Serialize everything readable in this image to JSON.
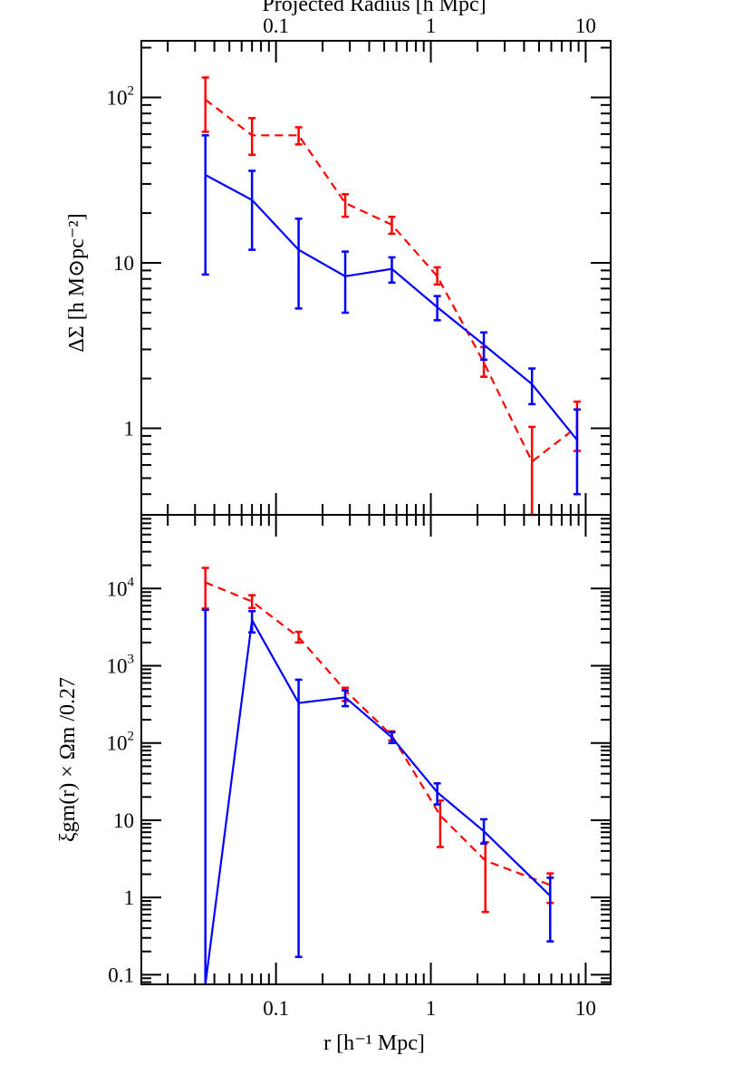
{
  "chart_data": [
    {
      "type": "line",
      "panel": "top",
      "top_xlabel": "Projected Radius [h Mpc]",
      "ylabel": "ΔΣ [h M⊙pc⁻²]",
      "xscale": "log",
      "yscale": "log",
      "xlim": [
        0.0135,
        14.5
      ],
      "ylim": [
        0.3,
        220
      ],
      "x_tick_labels": [
        "0.1",
        "1",
        "10"
      ],
      "y_tick_labels": [
        {
          "base": "10",
          "exp": "2",
          "value": 100
        },
        {
          "base": "10",
          "exp": "",
          "value": 10
        },
        {
          "base": "1",
          "exp": "",
          "value": 1
        }
      ],
      "series": [
        {
          "color": "#ff0000",
          "style": "dashed",
          "points": [
            {
              "x": 0.035,
              "y": 97,
              "lo": 62,
              "hi": 132
            },
            {
              "x": 0.07,
              "y": 59,
              "lo": 45,
              "hi": 75
            },
            {
              "x": 0.14,
              "y": 59,
              "lo": 52,
              "hi": 66
            },
            {
              "x": 0.28,
              "y": 23,
              "lo": 19,
              "hi": 26
            },
            {
              "x": 0.56,
              "y": 17,
              "lo": 15,
              "hi": 19
            },
            {
              "x": 1.1,
              "y": 8.3,
              "lo": 7.4,
              "hi": 9.4
            },
            {
              "x": 2.2,
              "y": 2.5,
              "lo": 2.05,
              "hi": 3.1
            },
            {
              "x": 4.5,
              "y": 0.63,
              "lo": 0.3,
              "hi": 1.02
            },
            {
              "x": 8.8,
              "y": 1.02,
              "lo": 0.73,
              "hi": 1.45
            }
          ]
        },
        {
          "color": "#0000ff",
          "style": "solid",
          "points": [
            {
              "x": 0.035,
              "y": 34,
              "lo": 8.5,
              "hi": 59
            },
            {
              "x": 0.07,
              "y": 24,
              "lo": 12,
              "hi": 36
            },
            {
              "x": 0.14,
              "y": 12,
              "lo": 5.3,
              "hi": 18.5
            },
            {
              "x": 0.28,
              "y": 8.3,
              "lo": 5,
              "hi": 11.7
            },
            {
              "x": 0.56,
              "y": 9.2,
              "lo": 7.6,
              "hi": 10.8
            },
            {
              "x": 1.1,
              "y": 5.4,
              "lo": 4.5,
              "hi": 6.3
            },
            {
              "x": 2.2,
              "y": 3.2,
              "lo": 2.6,
              "hi": 3.8
            },
            {
              "x": 4.5,
              "y": 1.85,
              "lo": 1.4,
              "hi": 2.3
            },
            {
              "x": 8.8,
              "y": 0.85,
              "lo": 0.4,
              "hi": 1.3
            }
          ]
        }
      ]
    },
    {
      "type": "line",
      "panel": "bottom",
      "xlabel": "r [h⁻¹ Mpc]",
      "ylabel": "ξgm(r) × Ωm /0.27",
      "xscale": "log",
      "yscale": "log",
      "xlim": [
        0.0135,
        14.5
      ],
      "ylim": [
        0.075,
        90000
      ],
      "x_tick_labels": [
        "0.1",
        "1",
        "10"
      ],
      "y_tick_labels": [
        {
          "base": "10",
          "exp": "4",
          "value": 10000
        },
        {
          "base": "10",
          "exp": "3",
          "value": 1000
        },
        {
          "base": "10",
          "exp": "2",
          "value": 100
        },
        {
          "base": "10",
          "exp": "",
          "value": 10
        },
        {
          "base": "1",
          "exp": "",
          "value": 1
        },
        {
          "base": "0.1",
          "exp": "",
          "value": 0.1
        }
      ],
      "series": [
        {
          "color": "#ff0000",
          "style": "dashed",
          "points": [
            {
              "x": 0.035,
              "y": 12000,
              "lo": 5500,
              "hi": 18500
            },
            {
              "x": 0.07,
              "y": 6800,
              "lo": 5600,
              "hi": 8200
            },
            {
              "x": 0.14,
              "y": 2350,
              "lo": 2000,
              "hi": 2750
            },
            {
              "x": 0.28,
              "y": 480,
              "lo": 350,
              "hi": 520
            },
            {
              "x": 0.56,
              "y": 125,
              "lo": 108,
              "hi": 142
            },
            {
              "x": 1.15,
              "y": 11.5,
              "lo": 4.5,
              "hi": 18
            },
            {
              "x": 2.25,
              "y": 3,
              "lo": 0.65,
              "hi": 5.2
            },
            {
              "x": 5.9,
              "y": 1.45,
              "lo": 0.85,
              "hi": 2.05
            }
          ]
        },
        {
          "color": "#0000ff",
          "style": "solid",
          "points": [
            {
              "x": 0.035,
              "y": 0.06,
              "lo": 0.06,
              "hi": 5300
            },
            {
              "x": 0.07,
              "y": 3900,
              "lo": 2700,
              "hi": 5100
            },
            {
              "x": 0.14,
              "y": 330,
              "lo": 0.17,
              "hi": 660
            },
            {
              "x": 0.28,
              "y": 390,
              "lo": 300,
              "hi": 480
            },
            {
              "x": 0.56,
              "y": 118,
              "lo": 100,
              "hi": 138
            },
            {
              "x": 1.1,
              "y": 23,
              "lo": 16,
              "hi": 30
            },
            {
              "x": 2.2,
              "y": 7.2,
              "lo": 5,
              "hi": 10.3
            },
            {
              "x": 5.9,
              "y": 1.05,
              "lo": 0.27,
              "hi": 1.8
            }
          ]
        }
      ]
    }
  ]
}
